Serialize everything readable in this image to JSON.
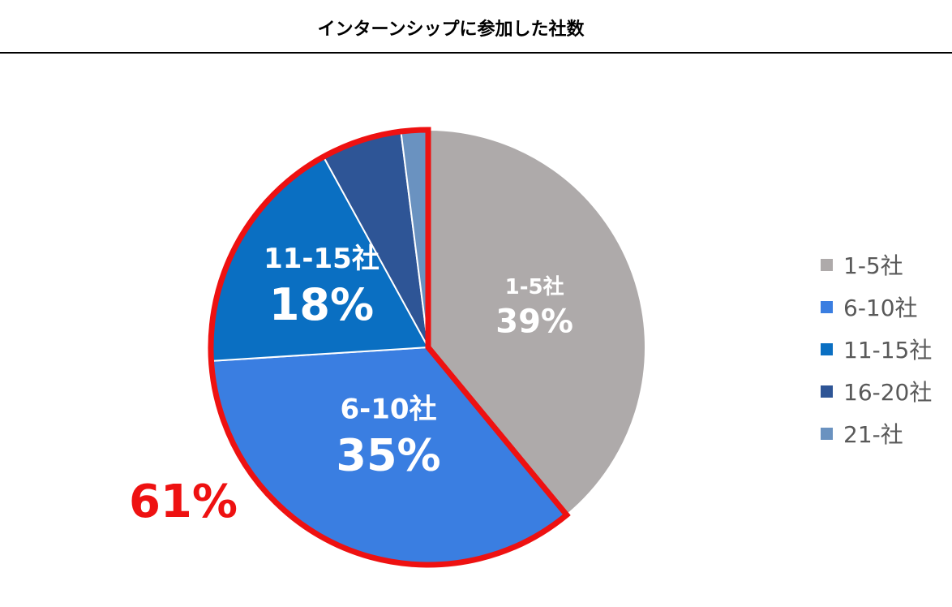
{
  "title": "インターンシップに参加した社数",
  "chart_data": {
    "type": "pie",
    "categories": [
      "1-5社",
      "6-10社",
      "11-15社",
      "16-20社",
      "21-社"
    ],
    "values": [
      39,
      35,
      18,
      6,
      2
    ],
    "data_labels": [
      "39%",
      "35%",
      "18%",
      "",
      ""
    ],
    "colors": [
      "#aeaaaa",
      "#3a7ee1",
      "#0a6fc2",
      "#2e5596",
      "#6a92c0"
    ],
    "legend_position": "right",
    "highlight": {
      "categories": [
        "6-10社",
        "11-15社",
        "16-20社",
        "21-社"
      ],
      "label": "61%",
      "color": "#ee1111"
    }
  }
}
